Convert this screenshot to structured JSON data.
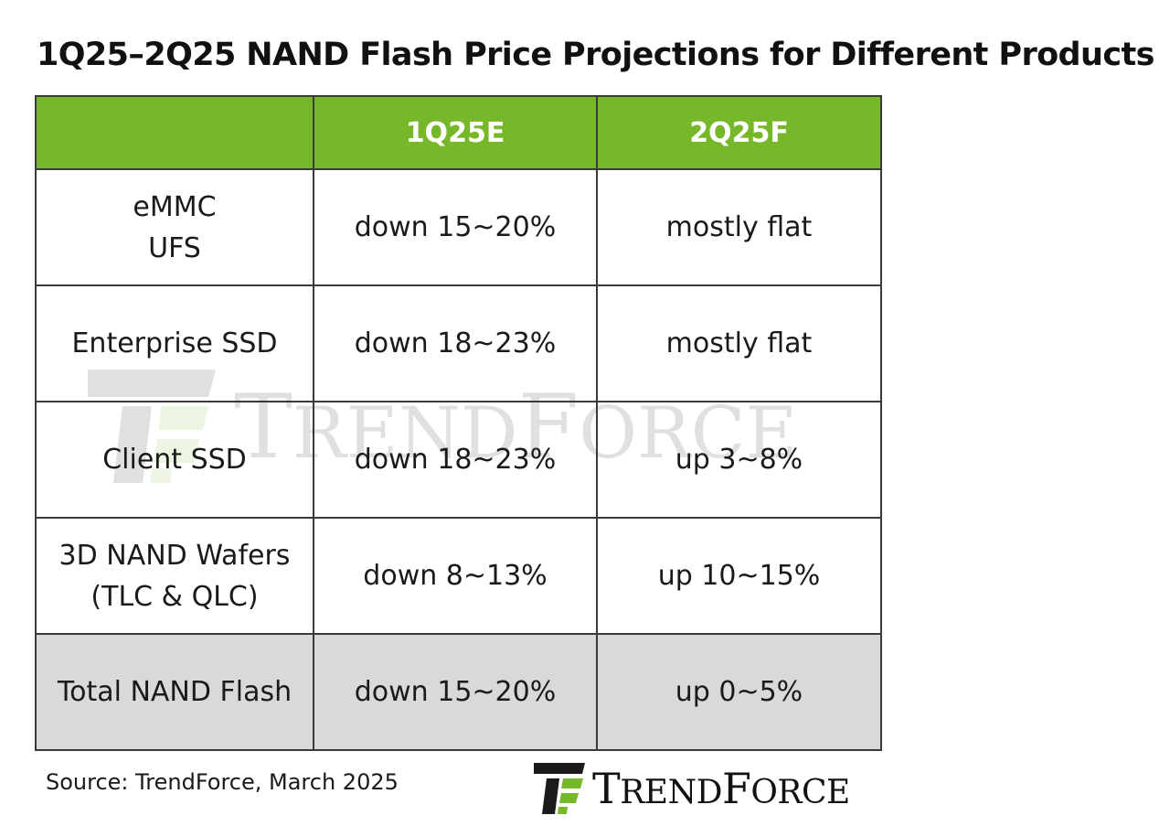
{
  "chart_data": {
    "type": "table",
    "title": "1Q25–2Q25 NAND Flash Price Projections for Different Products",
    "columns": [
      "",
      "1Q25E",
      "2Q25F"
    ],
    "rows": [
      {
        "product": [
          "eMMC",
          "UFS"
        ],
        "q1": "down 15~20%",
        "q2": "mostly flat"
      },
      {
        "product": [
          "Enterprise SSD"
        ],
        "q1": "down 18~23%",
        "q2": "mostly flat"
      },
      {
        "product": [
          "Client SSD"
        ],
        "q1": "down 18~23%",
        "q2": "up 3~8%"
      },
      {
        "product": [
          "3D NAND Wafers",
          "(TLC & QLC)"
        ],
        "q1": "down 8~13%",
        "q2": "up 10~15%"
      },
      {
        "product": [
          "Total NAND Flash"
        ],
        "q1": "down 15~20%",
        "q2": "up 0~5%"
      }
    ],
    "source": "Source: TrendForce, March 2025"
  },
  "branding": {
    "logo_text": "TRENDFORCE",
    "logo_big_letters": [
      "T",
      "F"
    ],
    "logo_small_parts": [
      "REND",
      "ORCE"
    ],
    "watermark_text": "TRENDFORCE"
  },
  "colors": {
    "header_bg": "#76b82a",
    "header_text": "#ffffff",
    "total_row_bg": "#d9d9d9",
    "border": "#3a3a3a",
    "logo_green": "#76b82a",
    "logo_dark": "#1a1a1a"
  }
}
